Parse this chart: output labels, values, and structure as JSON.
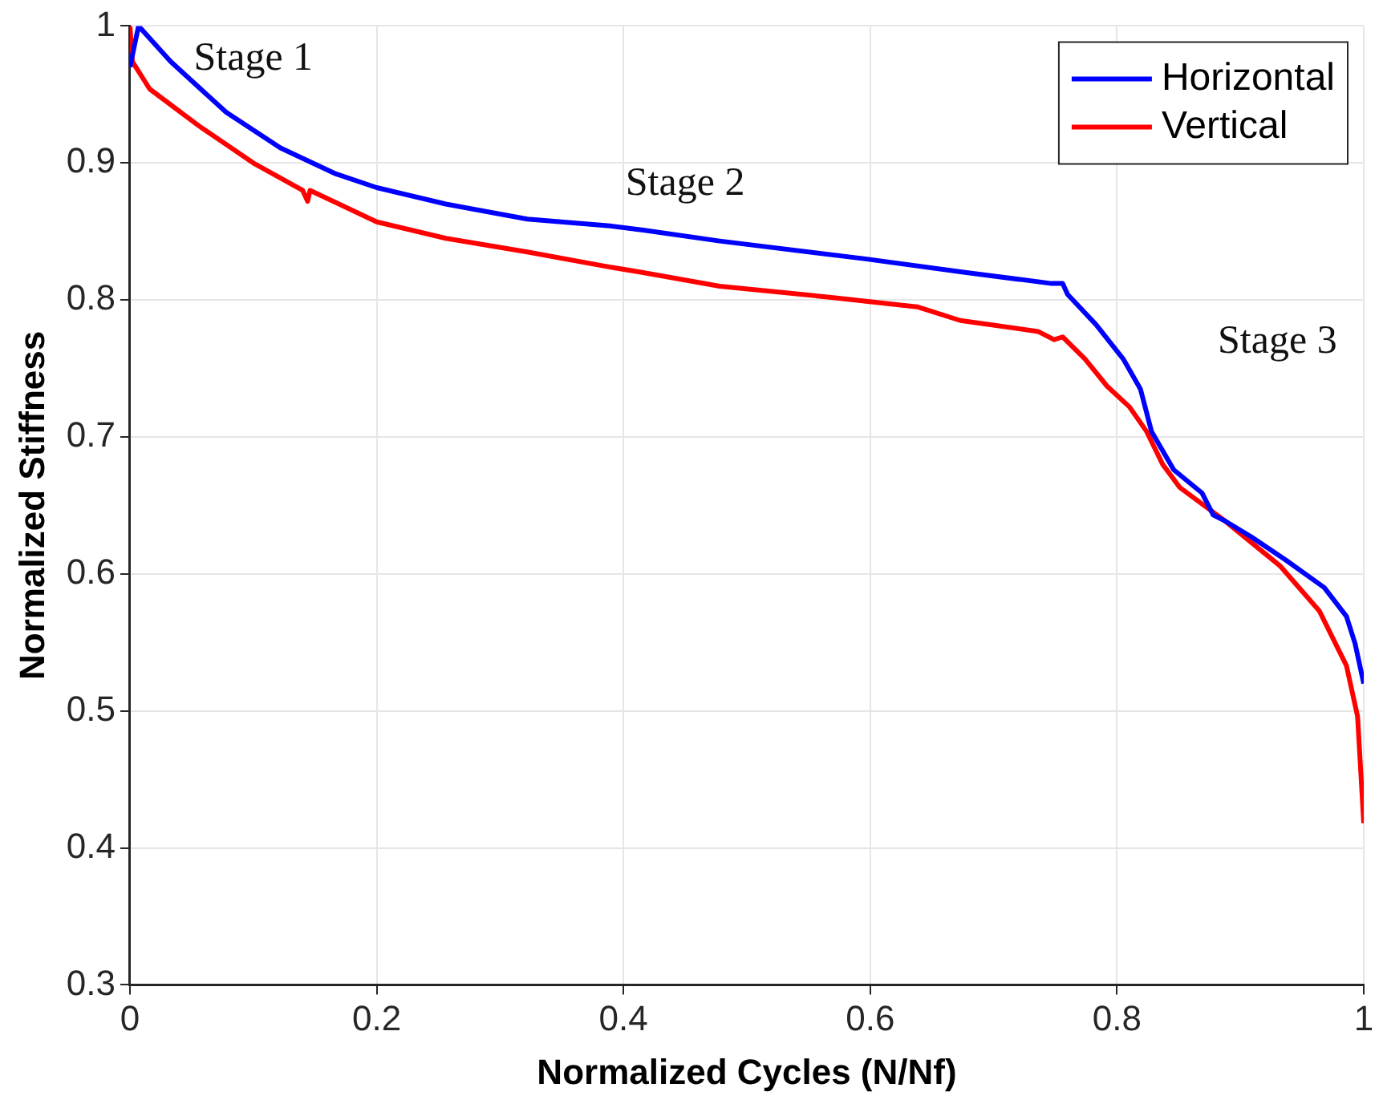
{
  "chart_data": {
    "type": "line",
    "xlabel": "Normalized Cycles (N/Nf)",
    "ylabel": "Normalized Stiffness",
    "xlim": [
      0,
      1
    ],
    "ylim": [
      0.3,
      1
    ],
    "xticks": [
      0,
      0.2,
      0.4,
      0.6,
      0.8,
      1
    ],
    "yticks": [
      0.3,
      0.4,
      0.5,
      0.6,
      0.7,
      0.8,
      0.9,
      1
    ],
    "grid": true,
    "legend": "top right",
    "marker": "none",
    "line_style": "solid",
    "annotations": [
      "Stage 1",
      "Stage 2",
      "Stage 3"
    ],
    "series": [
      {
        "name": "Horizontal",
        "color": "#0000ff",
        "x": [
          0,
          0.007,
          0.033,
          0.078,
          0.122,
          0.167,
          0.2,
          0.256,
          0.322,
          0.389,
          0.416,
          0.478,
          0.596,
          0.678,
          0.747,
          0.756,
          0.76,
          0.783,
          0.805,
          0.819,
          0.828,
          0.846,
          0.869,
          0.878,
          0.887,
          0.909,
          0.937,
          0.968,
          0.986,
          0.993,
          1
        ],
        "values": [
          0.97,
          1.0,
          0.974,
          0.937,
          0.911,
          0.892,
          0.882,
          0.87,
          0.859,
          0.854,
          0.851,
          0.843,
          0.83,
          0.82,
          0.812,
          0.812,
          0.804,
          0.782,
          0.757,
          0.735,
          0.704,
          0.676,
          0.659,
          0.643,
          0.639,
          0.627,
          0.61,
          0.59,
          0.569,
          0.549,
          0.52
        ]
      },
      {
        "name": "Vertical",
        "color": "#ff0000",
        "x": [
          0,
          0.002,
          0.016,
          0.056,
          0.1,
          0.14,
          0.144,
          0.146,
          0.2,
          0.256,
          0.322,
          0.389,
          0.416,
          0.478,
          0.567,
          0.638,
          0.673,
          0.736,
          0.749,
          0.756,
          0.774,
          0.792,
          0.81,
          0.824,
          0.837,
          0.851,
          0.887,
          0.932,
          0.964,
          0.986,
          0.995,
          1
        ],
        "values": [
          1.0,
          0.974,
          0.954,
          0.927,
          0.9,
          0.88,
          0.872,
          0.88,
          0.857,
          0.845,
          0.835,
          0.824,
          0.82,
          0.81,
          0.802,
          0.795,
          0.785,
          0.777,
          0.771,
          0.773,
          0.757,
          0.737,
          0.722,
          0.704,
          0.68,
          0.663,
          0.639,
          0.606,
          0.573,
          0.533,
          0.496,
          0.418
        ]
      }
    ]
  }
}
